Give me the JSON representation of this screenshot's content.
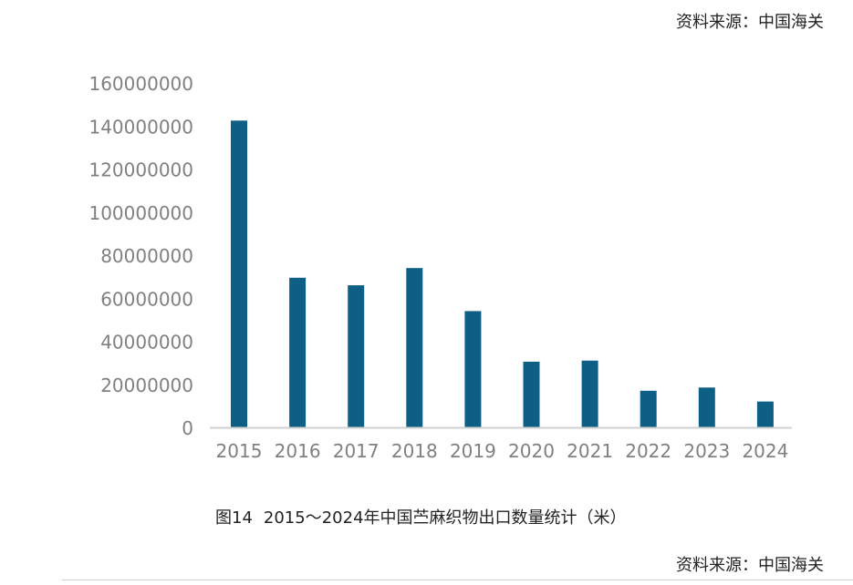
{
  "source_top": "资料来源：中国海关",
  "source_bottom": "资料来源：中国海关",
  "caption": {
    "figure_number": "图14",
    "text": "2015～2024年中国苎麻织物出口数量统计（米）"
  },
  "colors": {
    "bar": "#0e5f86",
    "axis_text": "#808080",
    "axis_line": "#d0d0d0"
  },
  "chart_data": {
    "type": "bar",
    "title": "",
    "xlabel": "",
    "ylabel": "",
    "categories": [
      "2015",
      "2016",
      "2017",
      "2018",
      "2019",
      "2020",
      "2021",
      "2022",
      "2023",
      "2024"
    ],
    "values": [
      142500000,
      69500000,
      66000000,
      74000000,
      54000000,
      30500000,
      31000000,
      17000000,
      18500000,
      12000000
    ],
    "ylim": [
      0,
      160000000
    ],
    "yticks": [
      "0",
      "20000000",
      "40000000",
      "60000000",
      "80000000",
      "100000000",
      "120000000",
      "140000000",
      "160000000"
    ],
    "grid": false,
    "legend": "none"
  }
}
